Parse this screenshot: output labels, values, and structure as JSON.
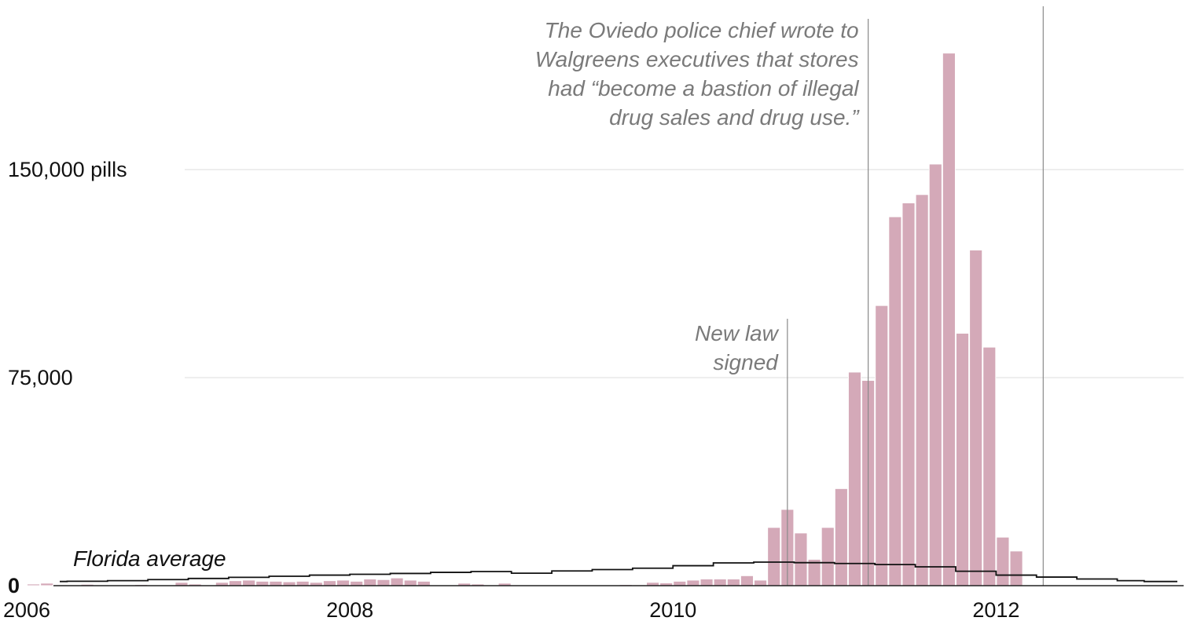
{
  "chart_data": {
    "type": "bar",
    "title": "",
    "xlabel": "",
    "ylabel": "",
    "y_unit_label": "pills",
    "ylim": [
      0,
      200000
    ],
    "xlim": [
      "2006-01",
      "2012-12"
    ],
    "y_ticks": [
      {
        "value": 0,
        "label": "0"
      },
      {
        "value": 75000,
        "label": "75,000"
      },
      {
        "value": 150000,
        "label": "150,000 pills"
      }
    ],
    "x_ticks": [
      {
        "value": "2006-01",
        "label": "2006"
      },
      {
        "value": "2008-01",
        "label": "2008"
      },
      {
        "value": "2010-01",
        "label": "2010"
      },
      {
        "value": "2012-01",
        "label": "2012"
      }
    ],
    "colors": {
      "bars": "#d4a9b8",
      "average_line": "#111111",
      "annotation_text": "#7a7a7a"
    },
    "series": [
      {
        "name": "",
        "type": "bar",
        "x": [
          "2006-01",
          "2006-02",
          "2006-03",
          "2006-04",
          "2006-05",
          "2006-06",
          "2006-07",
          "2006-08",
          "2006-09",
          "2006-10",
          "2006-11",
          "2006-12",
          "2007-01",
          "2007-02",
          "2007-03",
          "2007-04",
          "2007-05",
          "2007-06",
          "2007-07",
          "2007-08",
          "2007-09",
          "2007-10",
          "2007-11",
          "2007-12",
          "2008-01",
          "2008-02",
          "2008-03",
          "2008-04",
          "2008-05",
          "2008-06",
          "2008-07",
          "2008-08",
          "2008-09",
          "2008-10",
          "2008-11",
          "2008-12",
          "2009-01",
          "2009-02",
          "2009-03",
          "2009-04",
          "2009-05",
          "2009-06",
          "2009-07",
          "2009-08",
          "2009-09",
          "2009-10",
          "2009-11",
          "2009-12",
          "2010-01",
          "2010-02",
          "2010-03",
          "2010-04",
          "2010-05",
          "2010-06",
          "2010-07",
          "2010-08",
          "2010-09",
          "2010-10",
          "2010-11",
          "2010-12",
          "2011-01",
          "2011-02",
          "2011-03",
          "2011-04",
          "2011-05",
          "2011-06",
          "2011-07",
          "2011-08",
          "2011-09",
          "2011-10",
          "2011-11",
          "2011-12",
          "2012-01",
          "2012-02",
          "2012-03",
          "2012-04",
          "2012-05",
          "2012-06",
          "2012-07",
          "2012-08",
          "2012-09",
          "2012-10",
          "2012-11",
          "2012-12"
        ],
        "values": [
          600,
          900,
          300,
          300,
          500,
          200,
          0,
          0,
          400,
          200,
          0,
          1200,
          600,
          0,
          1200,
          1800,
          2000,
          1600,
          1600,
          1400,
          1600,
          1200,
          1800,
          2000,
          1600,
          2400,
          2200,
          2800,
          2000,
          1600,
          0,
          0,
          900,
          600,
          0,
          900,
          0,
          0,
          0,
          0,
          0,
          0,
          0,
          200,
          400,
          300,
          1200,
          1000,
          1600,
          2000,
          2400,
          2400,
          2400,
          3600,
          2000,
          21000,
          27500,
          19000,
          9500,
          21000,
          35000,
          77000,
          74000,
          101000,
          133000,
          138000,
          141000,
          152000,
          192000,
          91000,
          121000,
          86000,
          17500,
          12500,
          0,
          0,
          0,
          0,
          0,
          0,
          0,
          0,
          0,
          0
        ]
      },
      {
        "name": "Florida average",
        "type": "line",
        "x": [
          "2006-01",
          "2006-04",
          "2006-07",
          "2006-10",
          "2007-01",
          "2007-04",
          "2007-07",
          "2007-10",
          "2008-01",
          "2008-04",
          "2008-07",
          "2008-10",
          "2009-01",
          "2009-04",
          "2009-07",
          "2009-10",
          "2010-01",
          "2010-04",
          "2010-07",
          "2010-10",
          "2011-01",
          "2011-04",
          "2011-07",
          "2011-10",
          "2012-01",
          "2012-04",
          "2012-07",
          "2012-10",
          "2012-12"
        ],
        "values": [
          1500,
          1600,
          1800,
          2200,
          2600,
          3000,
          3400,
          3800,
          4100,
          4400,
          4800,
          5100,
          4500,
          5300,
          5800,
          6300,
          7200,
          8200,
          8500,
          8300,
          8000,
          7600,
          6800,
          5200,
          3800,
          3100,
          2400,
          1800,
          1500
        ]
      }
    ],
    "annotations": [
      {
        "x": "2010-09",
        "lines": [
          "New law",
          "signed"
        ]
      },
      {
        "x": "2011-03",
        "lines": [
          "The Oviedo police chief wrote to",
          "Walgreens executives that stores",
          "had “become a bastion of illegal",
          "drug sales and drug use.”"
        ]
      },
      {
        "x": "2012-04",
        "lines": []
      }
    ]
  }
}
